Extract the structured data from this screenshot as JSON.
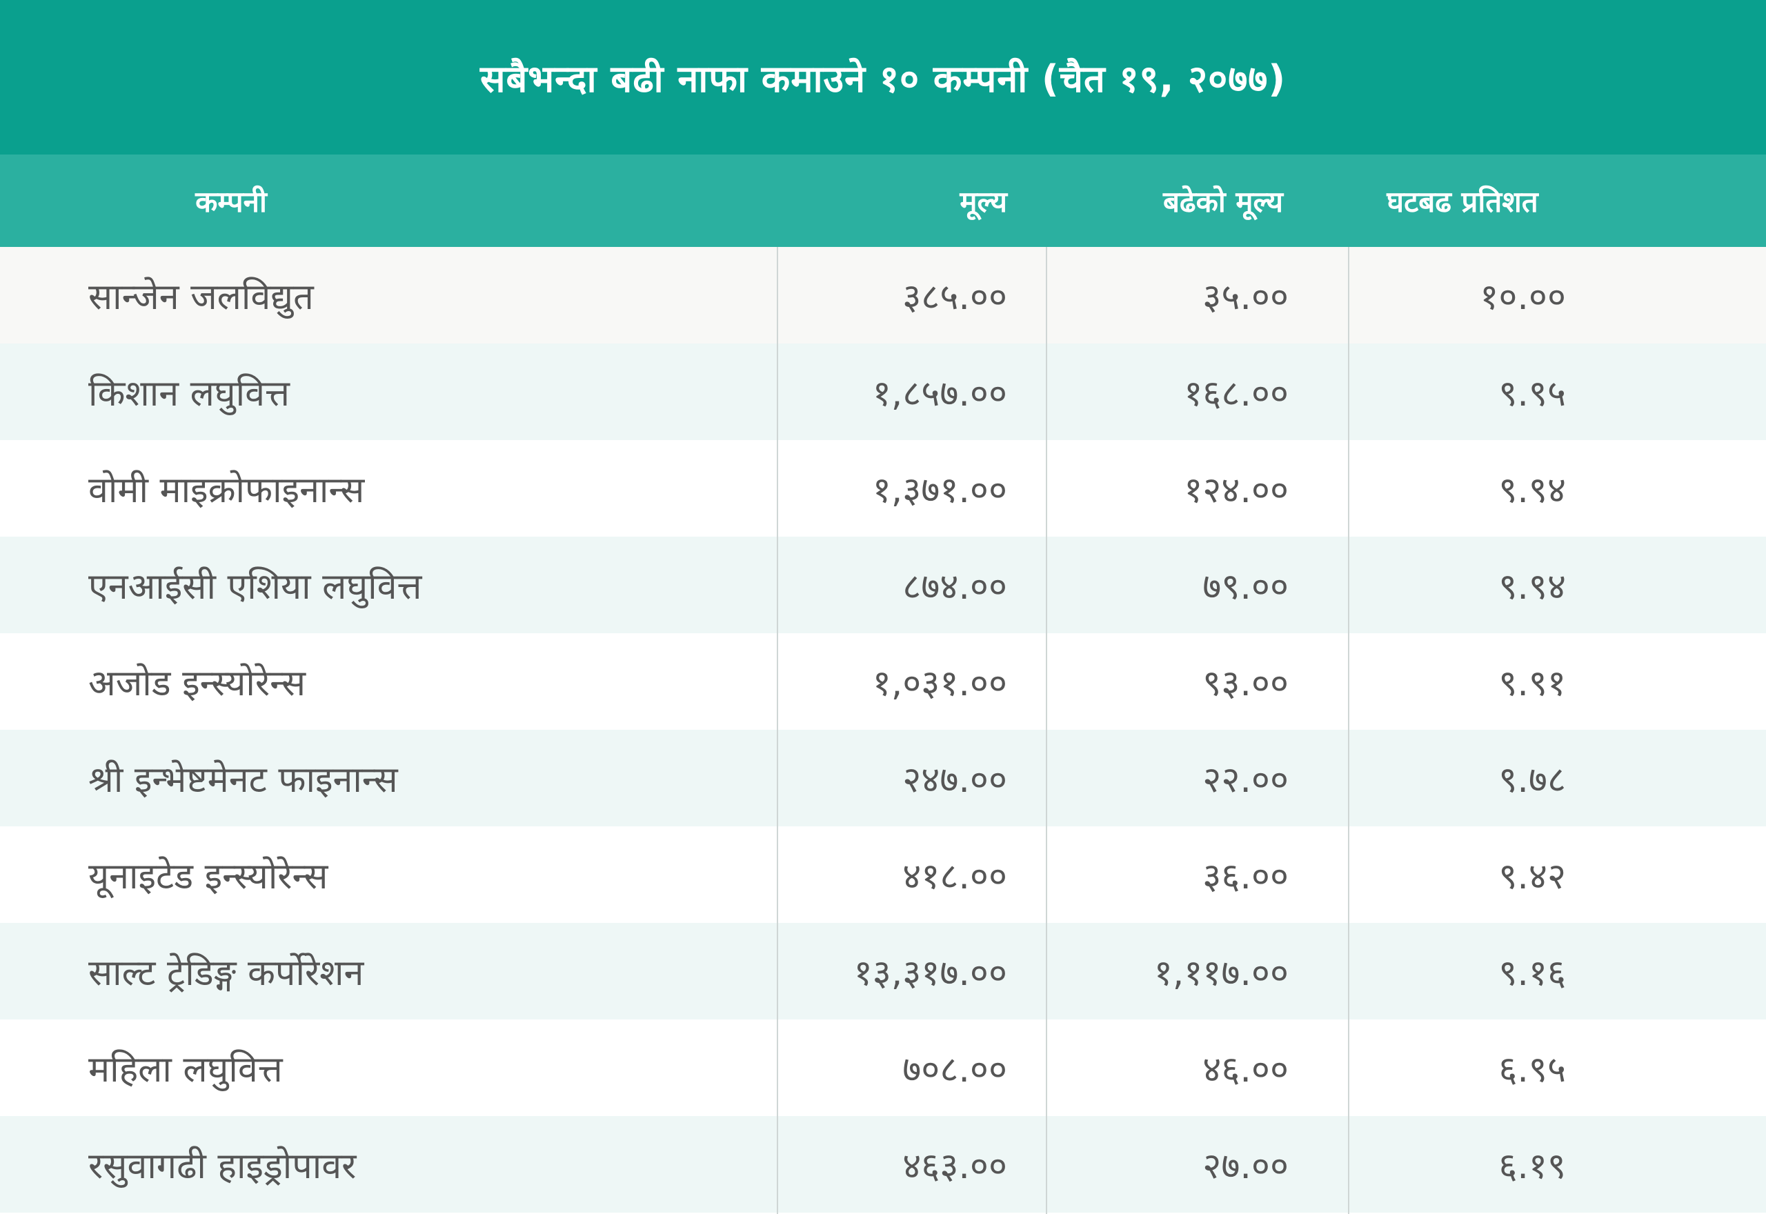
{
  "title": "सबैभन्दा बढी नाफा कमाउने १० कम्पनी (चैत १९, २०७७)",
  "columns": {
    "company": "कम्पनी",
    "price": "मूल्य",
    "increase": "बढेको मूल्य",
    "change": "घटबढ प्रतिशत"
  },
  "rows": [
    {
      "company": "सान्जेन जलविद्युत",
      "price": "३८५.००",
      "increase": "३५.००",
      "change": "१०.००"
    },
    {
      "company": "किशान लघुवित्त",
      "price": "१,८५७.००",
      "increase": "१६८.००",
      "change": "९.९५"
    },
    {
      "company": "वोमी माइक्रोफाइनान्स",
      "price": "१,३७१.००",
      "increase": "१२४.००",
      "change": "९.९४"
    },
    {
      "company": "एनआईसी एशिया लघुवित्त",
      "price": "८७४.००",
      "increase": "७९.००",
      "change": "९.९४"
    },
    {
      "company": "अजोड इन्स्योरेन्स",
      "price": "१,०३१.००",
      "increase": "९३.००",
      "change": "९.९१"
    },
    {
      "company": "श्री इन्भेष्टमेनट फाइनान्स",
      "price": "२४७.००",
      "increase": "२२.००",
      "change": "९.७८"
    },
    {
      "company": "यूनाइटेड इन्स्योरेन्स",
      "price": "४१८.००",
      "increase": "३६.००",
      "change": "९.४२"
    },
    {
      "company": "साल्ट ट्रेडिङ्ग कर्पोरेशन",
      "price": "१३,३१७.००",
      "increase": "१,११७.००",
      "change": "९.१६"
    },
    {
      "company": "महिला लघुवित्त",
      "price": "७०८.००",
      "increase": "४६.००",
      "change": "६.९५"
    },
    {
      "company": "रसुवागढी हाइड्रोपावर",
      "price": "४६३.००",
      "increase": "२७.००",
      "change": "६.१९"
    }
  ],
  "colors": {
    "title_bg": "#0aa08e",
    "header_bg": "#2bb0a0",
    "row_alt": "#eef7f6",
    "text": "#555555"
  }
}
